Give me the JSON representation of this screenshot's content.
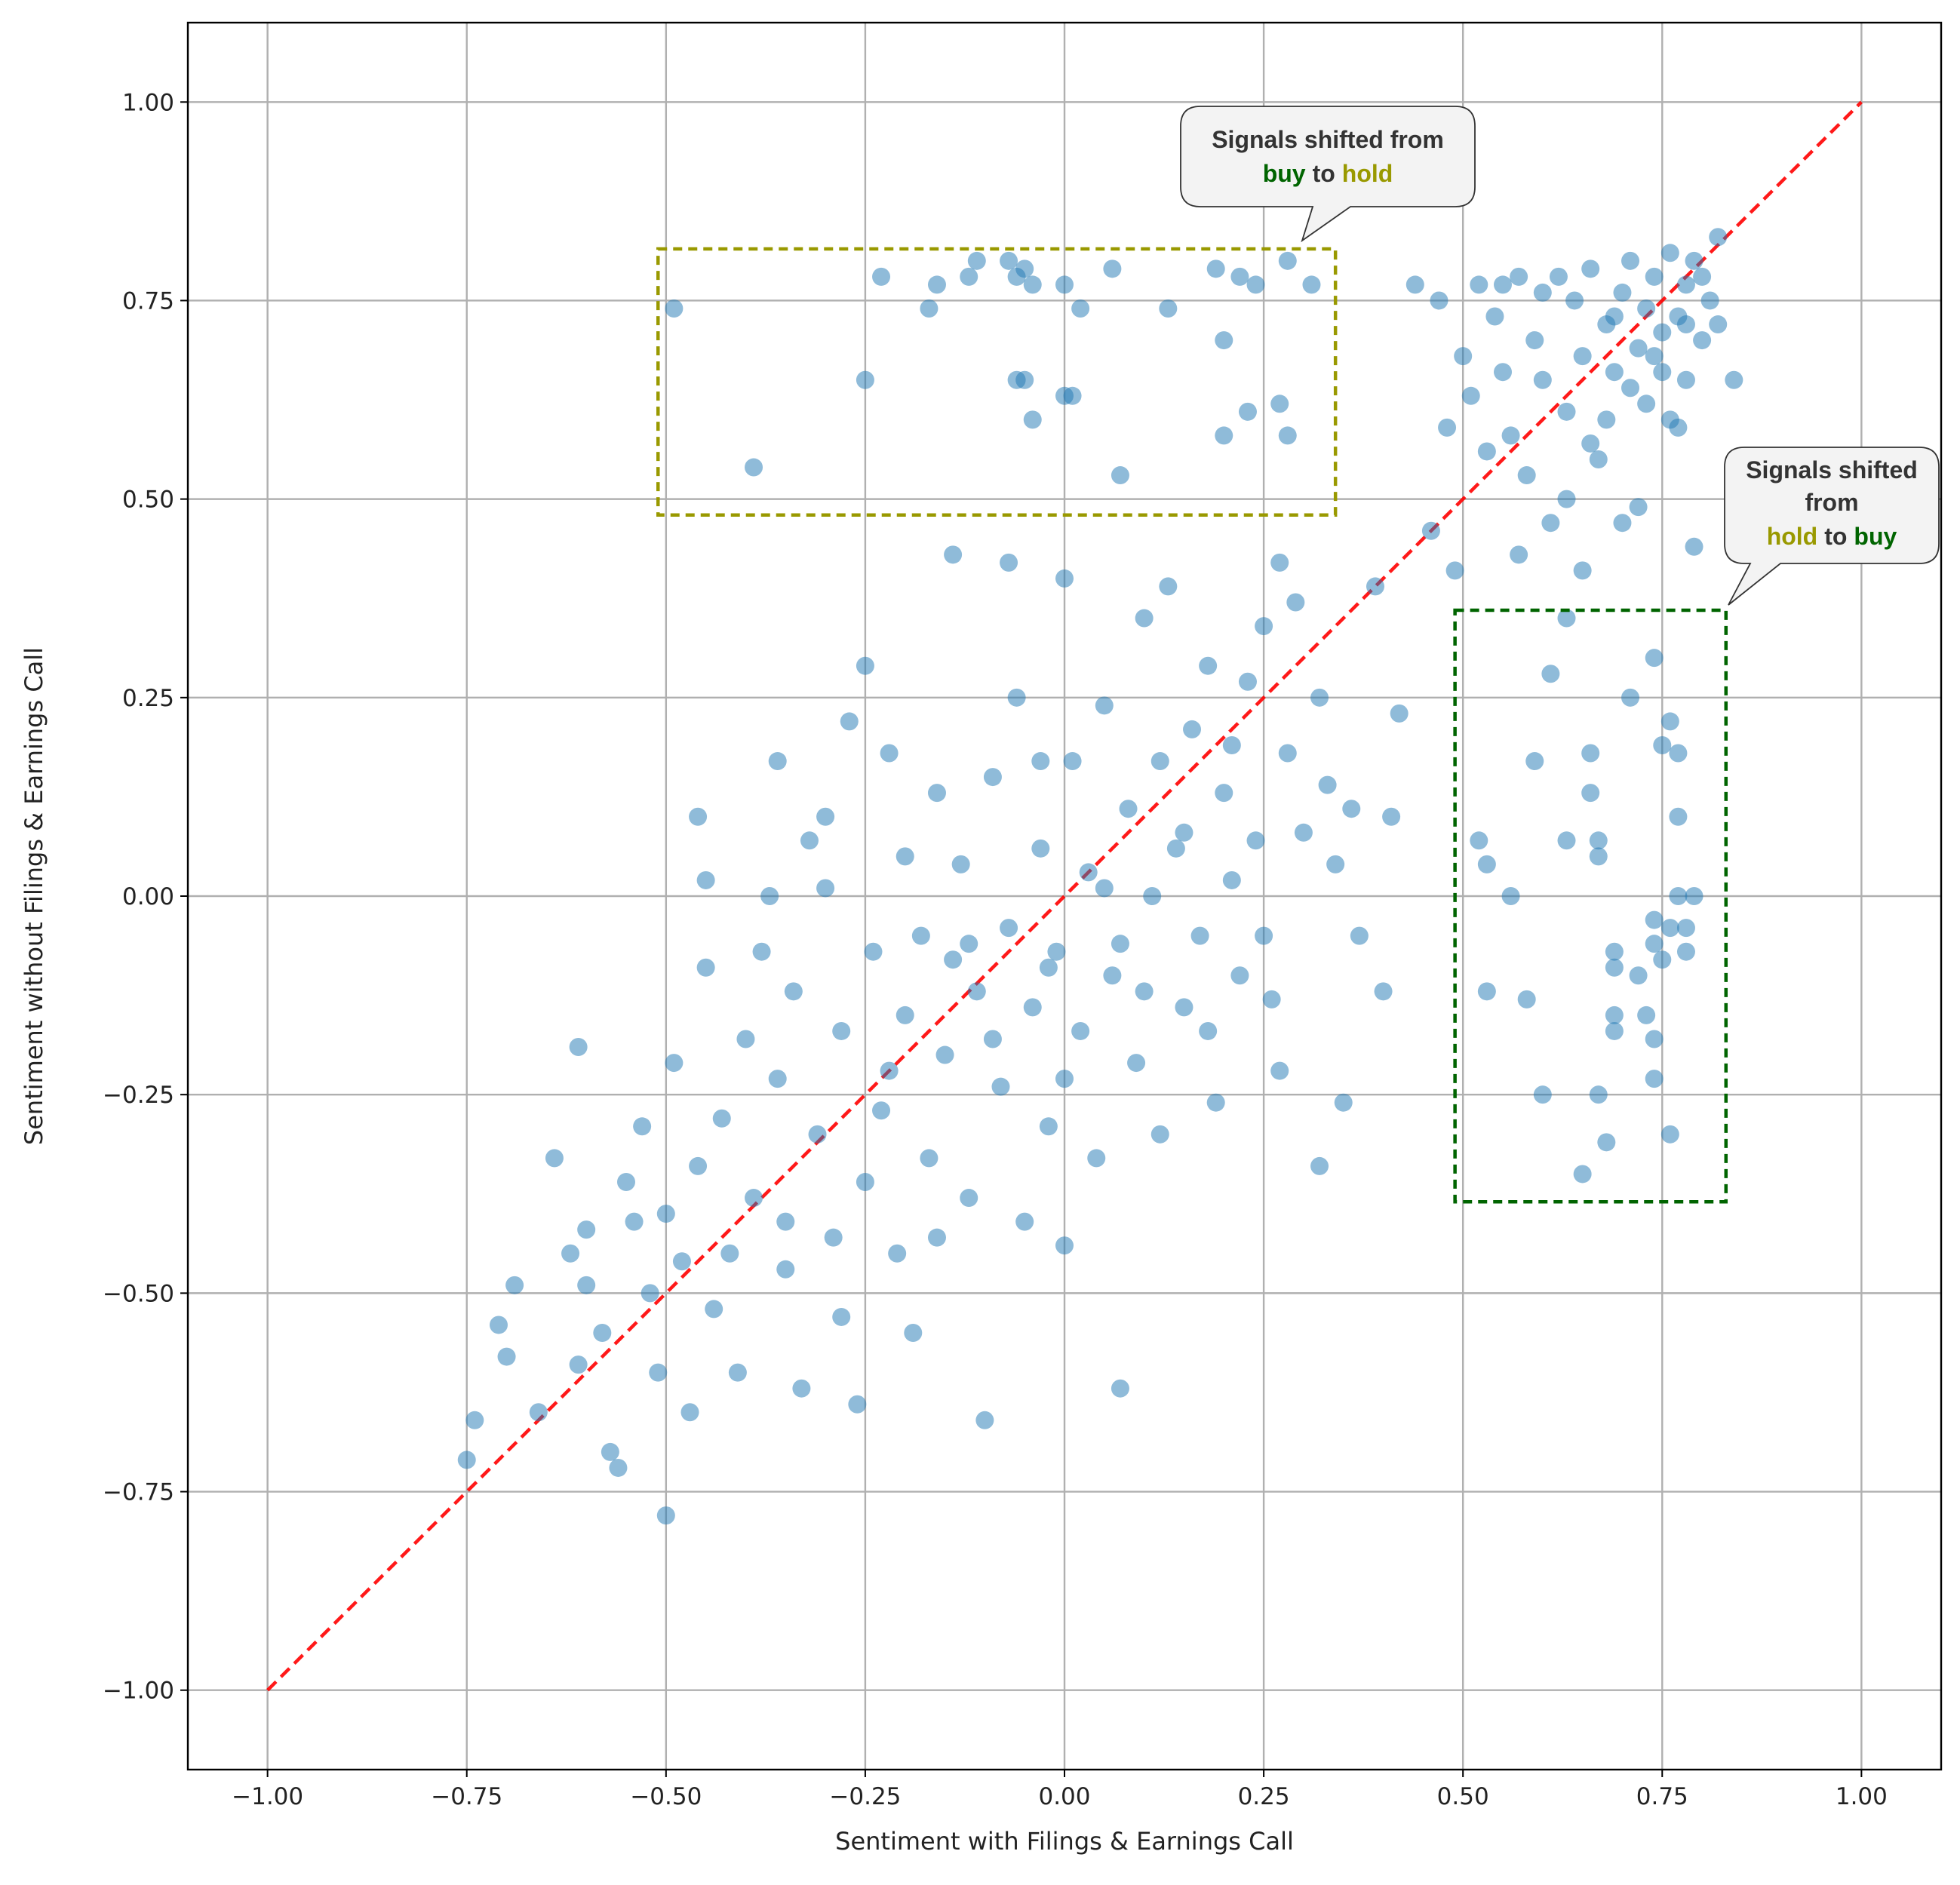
{
  "chart_data": {
    "type": "scatter",
    "x_label": "Sentiment with Filings & Earnings Call",
    "y_label": "Sentiment without Filings & Earnings Call",
    "color": "#1f77b4",
    "grid": true,
    "xlim": [
      -1.1,
      1.1
    ],
    "ylim": [
      -1.1,
      1.1
    ],
    "xticks": [
      {
        "value": -1,
        "label": "−1.00"
      },
      {
        "value": -0.75,
        "label": "−0.75"
      },
      {
        "value": -0.5,
        "label": "−0.50"
      },
      {
        "value": -0.25,
        "label": "−0.25"
      },
      {
        "value": 0,
        "label": "0.00"
      },
      {
        "value": 0.25,
        "label": "0.25"
      },
      {
        "value": 0.5,
        "label": "0.50"
      },
      {
        "value": 0.75,
        "label": "0.75"
      },
      {
        "value": 1,
        "label": "1.00"
      }
    ],
    "yticks": [
      {
        "value": -1,
        "label": "−1.00"
      },
      {
        "value": -0.75,
        "label": "−0.75"
      },
      {
        "value": -0.5,
        "label": "−0.50"
      },
      {
        "value": -0.25,
        "label": "−0.25"
      },
      {
        "value": 0,
        "label": "0.00"
      },
      {
        "value": 0.25,
        "label": "0.25"
      },
      {
        "value": 0.5,
        "label": "0.50"
      },
      {
        "value": 0.75,
        "label": "0.75"
      },
      {
        "value": 1,
        "label": "1.00"
      }
    ],
    "reference_line": {
      "x": [
        -1,
        1
      ],
      "y": [
        -1,
        1
      ],
      "color": "#ff0000"
    },
    "x": [
      -0.75,
      -0.74,
      -0.71,
      -0.7,
      -0.69,
      -0.66,
      -0.62,
      -0.61,
      -0.6,
      -0.6,
      -0.58,
      -0.57,
      -0.56,
      -0.55,
      -0.54,
      -0.53,
      -0.52,
      -0.51,
      -0.5,
      -0.5,
      -0.49,
      -0.48,
      -0.47,
      -0.46,
      -0.45,
      -0.45,
      -0.44,
      -0.43,
      -0.42,
      -0.41,
      -0.4,
      -0.39,
      -0.38,
      -0.37,
      -0.36,
      -0.35,
      -0.34,
      -0.33,
      -0.32,
      -0.31,
      -0.3,
      -0.29,
      -0.28,
      -0.27,
      -0.26,
      -0.25,
      -0.25,
      -0.24,
      -0.23,
      -0.22,
      -0.21,
      -0.2,
      -0.2,
      -0.19,
      -0.18,
      -0.17,
      -0.16,
      -0.15,
      -0.14,
      -0.14,
      -0.13,
      -0.12,
      -0.11,
      -0.1,
      -0.09,
      -0.08,
      -0.07,
      -0.07,
      -0.06,
      -0.05,
      -0.04,
      -0.03,
      -0.02,
      -0.01,
      0,
      0,
      0.01,
      0.02,
      0.03,
      0.04,
      0.05,
      0.06,
      0.07,
      0.08,
      0.09,
      0.1,
      0.11,
      0.12,
      0.13,
      0.14,
      0.15,
      0.16,
      0.17,
      0.18,
      0.19,
      0.2,
      0.21,
      0.22,
      0.23,
      0.24,
      0.25,
      0.26,
      0.27,
      0.27,
      0.28,
      0.29,
      0.3,
      0.32,
      0.32,
      0.33,
      0.34,
      0.35,
      0.36,
      0.37,
      0.39,
      0.4,
      0.41,
      0.42,
      -0.64,
      -0.61,
      -0.46,
      -0.36,
      -0.3,
      -0.35,
      -0.28,
      -0.22,
      -0.16,
      -0.12,
      -0.09,
      -0.03,
      -0.02,
      0,
      0.05,
      0.07,
      0.1,
      0.12,
      0.15,
      0.18,
      0.21,
      0.25,
      0.44,
      0.46,
      0.47,
      0.48,
      0.5,
      0.51,
      0.52,
      0.53,
      0.54,
      0.55,
      0.56,
      0.57,
      0.58,
      0.59,
      0.6,
      0.61,
      0.62,
      0.63,
      0.64,
      0.65,
      0.65,
      0.66,
      0.67,
      0.68,
      0.69,
      0.7,
      0.7,
      0.71,
      0.72,
      0.73,
      0.73,
      0.74,
      0.75,
      0.75,
      0.76,
      0.77,
      0.77,
      0.78,
      0.78,
      0.79,
      0.79,
      0.8,
      0.81,
      0.82,
      0.82,
      0.84,
      0.68,
      0.63,
      0.57,
      0.49,
      0.72,
      0.66,
      0.71,
      0.76,
      0.8,
      0.6,
      0.69,
      0.74,
      0.78,
      0.55,
      -0.49,
      -0.23,
      -0.16,
      -0.17,
      -0.11,
      -0.12,
      -0.07,
      -0.06,
      -0.05,
      -0.04,
      0,
      0.06,
      0.19,
      0.22,
      0.24,
      0.28,
      0.31,
      0.13,
      0.02,
      0.2,
      -0.25,
      -0.06,
      -0.05,
      0,
      -0.04,
      0.23,
      0.27,
      0.2,
      0.28,
      -0.39,
      0.07,
      0.01,
      0.63,
      0.74,
      0.61,
      0.71,
      0.76,
      0.59,
      0.66,
      0.75,
      0.77,
      0.52,
      0.63,
      0.67,
      0.66,
      0.77,
      0.53,
      0.67,
      0.56,
      0.77,
      0.79,
      0.74,
      0.76,
      0.74,
      0.78,
      0.69,
      0.69,
      0.78,
      0.75,
      0.72,
      0.53,
      0.58,
      0.69,
      0.73,
      0.69,
      0.74,
      0.74,
      0.6,
      0.67,
      0.68,
      0.76,
      0.65
    ],
    "y": [
      -0.71,
      -0.66,
      -0.54,
      -0.58,
      -0.49,
      -0.65,
      -0.45,
      -0.59,
      -0.42,
      -0.49,
      -0.55,
      -0.7,
      -0.72,
      -0.36,
      -0.41,
      -0.29,
      -0.5,
      -0.6,
      -0.78,
      -0.4,
      -0.21,
      -0.46,
      -0.65,
      -0.34,
      -0.09,
      0.02,
      -0.52,
      -0.28,
      -0.45,
      -0.6,
      -0.18,
      -0.38,
      -0.07,
      0,
      -0.23,
      -0.47,
      -0.12,
      -0.62,
      0.07,
      -0.3,
      0.01,
      -0.43,
      -0.17,
      0.22,
      -0.64,
      -0.36,
      0.29,
      -0.07,
      -0.27,
      0.18,
      -0.45,
      0.05,
      -0.15,
      -0.55,
      -0.05,
      -0.33,
      0.13,
      -0.2,
      0.43,
      -0.08,
      0.04,
      -0.38,
      -0.12,
      -0.66,
      0.15,
      -0.24,
      0.42,
      -0.04,
      0.25,
      -0.41,
      -0.14,
      0.06,
      -0.29,
      -0.07,
      0.4,
      -0.44,
      0.17,
      -0.17,
      0.03,
      -0.33,
      0.24,
      -0.1,
      -0.62,
      0.11,
      -0.21,
      0.35,
      0,
      -0.3,
      0.39,
      0.06,
      -0.14,
      0.21,
      -0.05,
      0.29,
      -0.26,
      0.13,
      0.02,
      -0.1,
      0.27,
      0.07,
      0.34,
      -0.13,
      0.42,
      -0.22,
      0.18,
      0.37,
      0.08,
      -0.34,
      0.25,
      0.14,
      0.04,
      -0.26,
      0.11,
      -0.05,
      0.39,
      -0.12,
      0.1,
      0.23,
      -0.33,
      -0.19,
      0.1,
      0.17,
      0.1,
      -0.41,
      -0.53,
      -0.22,
      -0.43,
      -0.06,
      -0.18,
      0.17,
      -0.09,
      -0.23,
      0.01,
      -0.06,
      -0.12,
      0.17,
      0.08,
      -0.17,
      0.19,
      -0.05,
      0.77,
      0.46,
      0.75,
      0.59,
      0.68,
      0.63,
      0.77,
      0.56,
      0.73,
      0.66,
      0.58,
      0.78,
      0.53,
      0.7,
      0.65,
      0.47,
      0.78,
      0.61,
      0.75,
      0.41,
      0.68,
      0.79,
      0.55,
      0.72,
      0.66,
      0.47,
      0.76,
      0.8,
      0.69,
      0.62,
      0.74,
      0.78,
      0.66,
      0.71,
      0.81,
      0.59,
      0.73,
      0.77,
      0.65,
      0.44,
      0.8,
      0.7,
      0.75,
      0.83,
      0.72,
      0.65,
      0.6,
      0.5,
      0.43,
      0.41,
      0.49,
      0.57,
      0.64,
      0.6,
      0.78,
      0.76,
      0.73,
      0.68,
      0.72,
      0.77,
      0.74,
      0.78,
      0.77,
      0.74,
      0.8,
      0.78,
      0.8,
      0.78,
      0.79,
      0.77,
      0.77,
      0.79,
      0.79,
      0.78,
      0.77,
      0.8,
      0.77,
      0.74,
      0.74,
      0.7,
      0.65,
      0.65,
      0.65,
      0.63,
      0.6,
      0.61,
      0.62,
      0.58,
      0.58,
      0.54,
      0.53,
      0.63,
      0.35,
      0.3,
      0.28,
      0.25,
      0.22,
      0.17,
      0.18,
      0.19,
      0.18,
      0.07,
      0.07,
      0.07,
      0.13,
      0.1,
      0.04,
      0.05,
      0,
      0,
      0,
      -0.03,
      -0.04,
      -0.06,
      -0.04,
      -0.07,
      -0.09,
      -0.07,
      -0.08,
      -0.1,
      -0.12,
      -0.13,
      -0.15,
      -0.15,
      -0.17,
      -0.18,
      -0.23,
      -0.25,
      -0.25,
      -0.31,
      -0.3,
      -0.35
    ],
    "annotations": [
      {
        "lines": [
          [
            {
              "text": "Signals shifted from"
            }
          ],
          [
            {
              "text": "buy",
              "color": "#006400"
            },
            {
              "text": "to"
            },
            {
              "text": "hold",
              "color": "#999900"
            }
          ]
        ],
        "box_x": [
          -0.51,
          0.34
        ],
        "box_y": [
          0.48,
          0.815
        ],
        "color": "#999900"
      },
      {
        "lines": [
          [
            {
              "text": "Signals shifted"
            }
          ],
          [
            {
              "text": "from"
            }
          ],
          [
            {
              "text": "hold",
              "color": "#999900"
            },
            {
              "text": "to"
            },
            {
              "text": "buy",
              "color": "#006400"
            }
          ]
        ],
        "box_x": [
          0.49,
          0.83
        ],
        "box_y": [
          -0.385,
          0.36
        ],
        "color": "#006400"
      }
    ]
  }
}
